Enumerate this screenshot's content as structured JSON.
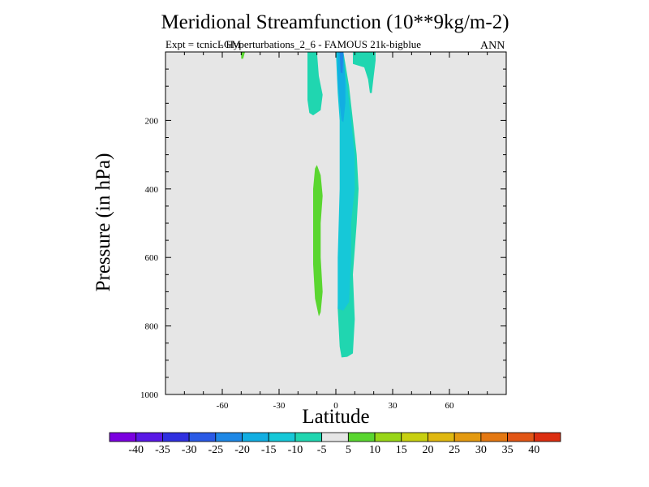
{
  "chart_data": {
    "type": "contour",
    "title": "Meridional Streamfunction (10**9kg/m-2)",
    "subtitle": "Expt = tcnic - Hyperturbations_2_6 - FAMOUS 21k-bigblue",
    "overlay_label": "LGM",
    "season": "ANN",
    "xlabel": "Latitude",
    "ylabel": "Pressure (in hPa)",
    "xlim": [
      -90,
      90
    ],
    "ylim": [
      1000,
      0
    ],
    "x_ticks": [
      -60,
      -30,
      0,
      30,
      60
    ],
    "y_ticks": [
      200,
      400,
      600,
      800,
      1000
    ],
    "y_axis_reversed": true,
    "grid": false,
    "background_color": "#e6e6e6",
    "contour_levels": [
      -40,
      -35,
      -30,
      -25,
      -20,
      -15,
      -10,
      -5,
      5,
      10,
      15,
      20,
      25,
      30,
      35,
      40
    ],
    "colorbar_colors": [
      "#7b00e0",
      "#5a18e6",
      "#3030e0",
      "#2a5ae6",
      "#1e88e6",
      "#12aee2",
      "#16c8d8",
      "#20d6b0",
      "#e6e6e6",
      "#5ad630",
      "#98d618",
      "#c8d010",
      "#e0b810",
      "#e49a10",
      "#e47812",
      "#e25616",
      "#dc2e10"
    ],
    "regions": [
      {
        "level": -10,
        "color": "#20d6b0",
        "points": [
          [
            -10,
            0
          ],
          [
            -9,
            70
          ],
          [
            -7,
            125
          ],
          [
            -8,
            170
          ],
          [
            -12,
            185
          ],
          [
            -14,
            178
          ],
          [
            -15,
            140
          ],
          [
            -15,
            60
          ],
          [
            -15,
            0
          ]
        ]
      },
      {
        "level": -10,
        "color": "#20d6b0",
        "points": [
          [
            9,
            0
          ],
          [
            9,
            35
          ],
          [
            15,
            45
          ],
          [
            17,
            80
          ],
          [
            18,
            120
          ],
          [
            19,
            120
          ],
          [
            20,
            70
          ],
          [
            21,
            25
          ],
          [
            21,
            0
          ]
        ]
      },
      {
        "level": -10,
        "color": "#20d6b0",
        "points": [
          [
            0,
            0
          ],
          [
            2,
            120
          ],
          [
            3,
            200
          ],
          [
            3,
            400
          ],
          [
            2,
            600
          ],
          [
            1,
            750
          ],
          [
            2,
            860
          ],
          [
            3,
            892
          ],
          [
            6,
            890
          ],
          [
            9,
            880
          ],
          [
            10,
            780
          ],
          [
            9,
            650
          ],
          [
            11,
            500
          ],
          [
            12,
            400
          ],
          [
            11,
            300
          ],
          [
            9,
            200
          ],
          [
            7,
            100
          ],
          [
            4,
            0
          ]
        ]
      },
      {
        "level": -15,
        "color": "#16c8d8",
        "points": [
          [
            0,
            0
          ],
          [
            1,
            120
          ],
          [
            2,
            200
          ],
          [
            2,
            400
          ],
          [
            1,
            600
          ],
          [
            1,
            750
          ],
          [
            4,
            755
          ],
          [
            7,
            730
          ],
          [
            8,
            600
          ],
          [
            8,
            500
          ],
          [
            10,
            400
          ],
          [
            10,
            300
          ],
          [
            8,
            200
          ],
          [
            6,
            100
          ],
          [
            3,
            0
          ]
        ]
      },
      {
        "level": -20,
        "color": "#12aee2",
        "points": [
          [
            1,
            0
          ],
          [
            1,
            80
          ],
          [
            2,
            150
          ],
          [
            3,
            200
          ],
          [
            4,
            205
          ],
          [
            5,
            150
          ],
          [
            5,
            80
          ],
          [
            4,
            0
          ]
        ]
      },
      {
        "level": -25,
        "color": "#1e88e6",
        "points": [
          [
            2,
            0
          ],
          [
            2.5,
            60
          ],
          [
            3.5,
            62
          ],
          [
            4,
            0
          ]
        ]
      },
      {
        "level": 5,
        "color": "#5ad630",
        "points": [
          [
            -10,
            330
          ],
          [
            -8,
            360
          ],
          [
            -7,
            420
          ],
          [
            -8,
            500
          ],
          [
            -8,
            600
          ],
          [
            -7,
            700
          ],
          [
            -8,
            760
          ],
          [
            -9,
            772
          ],
          [
            -11,
            720
          ],
          [
            -12,
            620
          ],
          [
            -12,
            500
          ],
          [
            -12,
            400
          ],
          [
            -11,
            340
          ]
        ]
      },
      {
        "level": 5,
        "color": "#5ad630",
        "points": [
          [
            -50,
            0
          ],
          [
            -48,
            0
          ],
          [
            -49,
            20
          ],
          [
            -50,
            20
          ]
        ]
      }
    ]
  }
}
